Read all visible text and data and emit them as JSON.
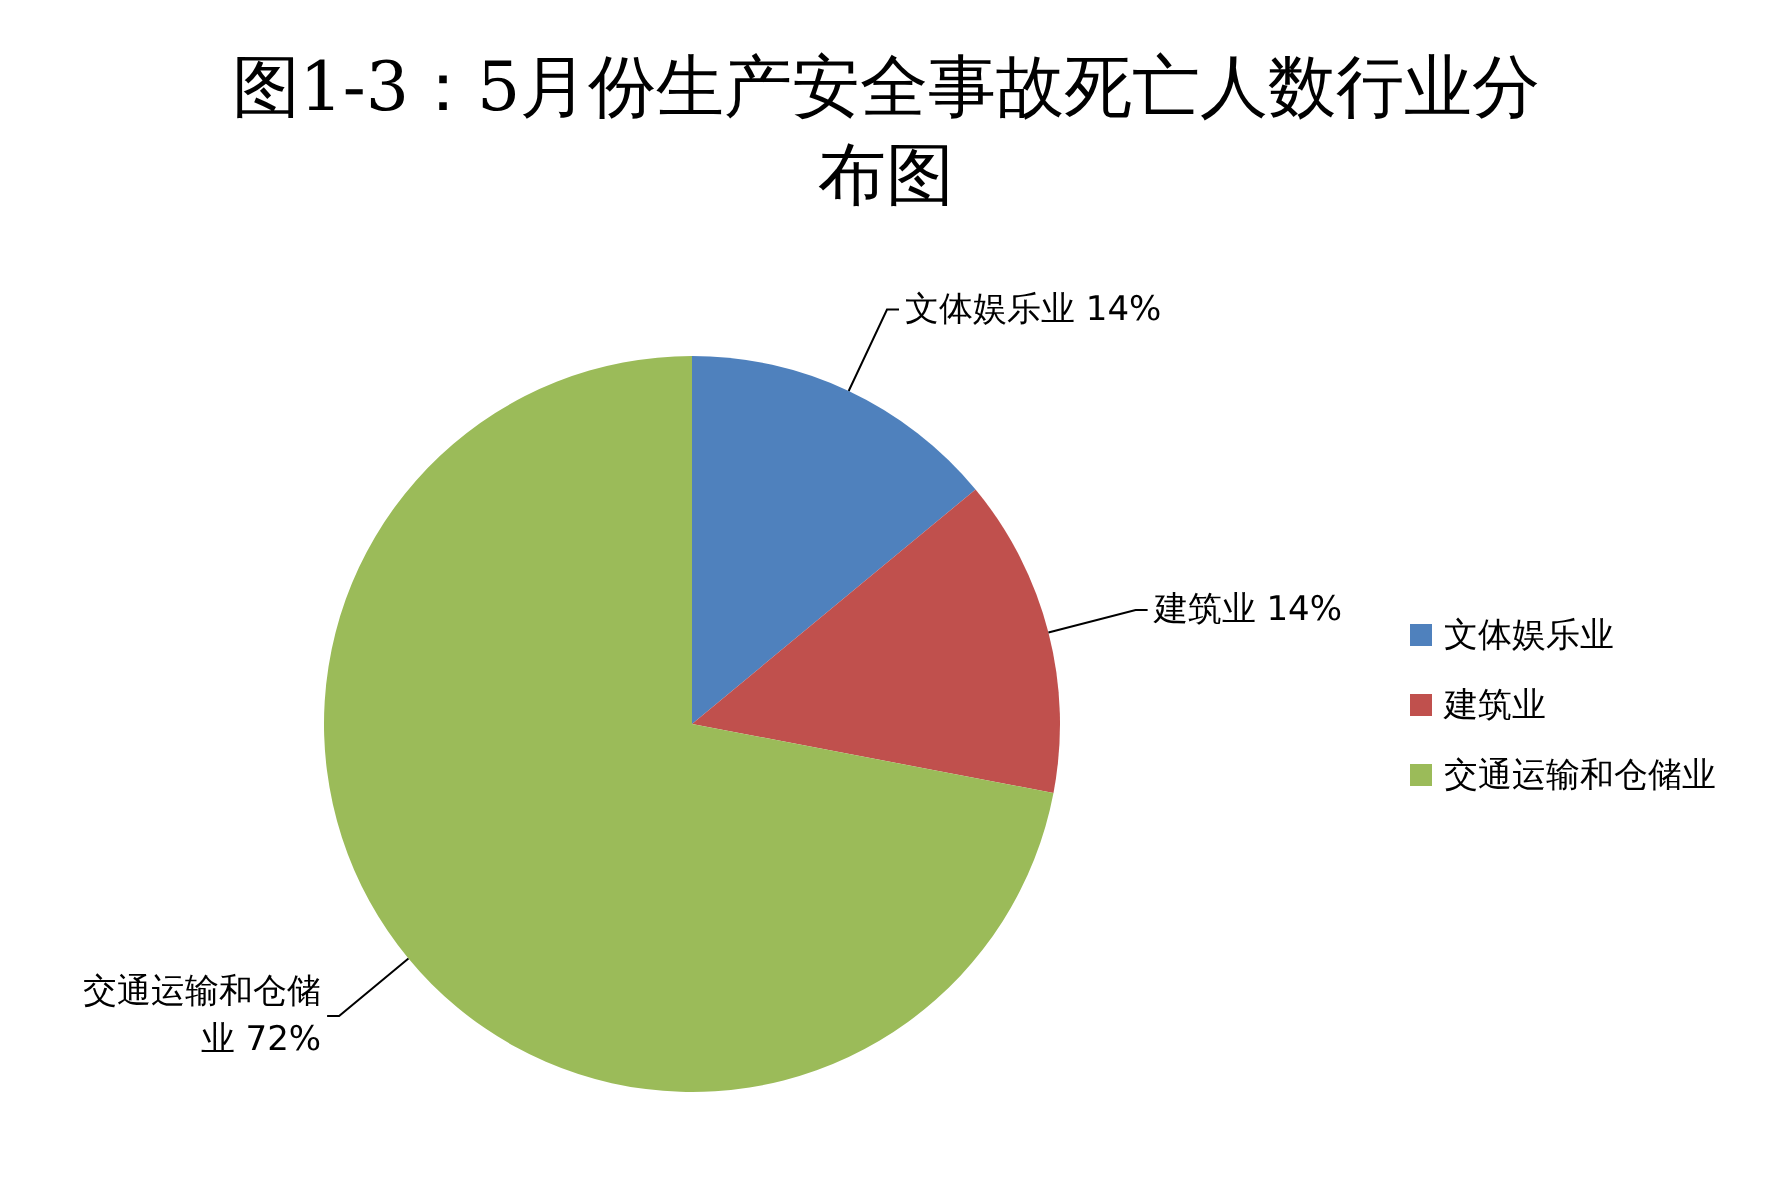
{
  "chart_data": {
    "type": "pie",
    "title": "图1-3：5月份生产安全事故死亡人数行业分布图",
    "categories": [
      "文体娱乐业",
      "建筑业",
      "交通运输和仓储业"
    ],
    "values": [
      14,
      14,
      72
    ],
    "colors": [
      "#4f81bd",
      "#c0504d",
      "#9bbb59"
    ],
    "value_labels": [
      "文体娱乐业 14%",
      "建筑业 14%",
      "交通运输和仓储业 72%"
    ],
    "legend": "right"
  }
}
